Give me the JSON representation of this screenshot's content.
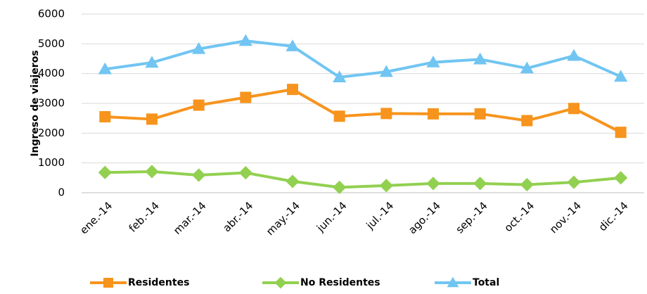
{
  "chart_data": {
    "type": "line",
    "y_label": "Ingreso de viajeros",
    "categories": [
      "ene.-14",
      "feb.-14",
      "mar.-14",
      "abr.-14",
      "may.-14",
      "jun.-14",
      "jul.-14",
      "ago.-14",
      "sep.-14",
      "oct.-14",
      "nov.-14",
      "dic.-14"
    ],
    "series": [
      {
        "name": "Residentes",
        "color": "#f7941d",
        "marker": "square",
        "values": [
          2550,
          2470,
          2940,
          3200,
          3470,
          2570,
          2660,
          2650,
          2650,
          2420,
          2830,
          2030
        ]
      },
      {
        "name": "No Residentes",
        "color": "#92d050",
        "marker": "diamond",
        "values": [
          680,
          710,
          590,
          670,
          380,
          180,
          240,
          310,
          310,
          270,
          350,
          500
        ]
      },
      {
        "name": "Total",
        "color": "#71c5f2",
        "marker": "triangle",
        "values": [
          4150,
          4370,
          4830,
          5100,
          4920,
          3880,
          4060,
          4380,
          4480,
          4180,
          4600,
          3900
        ]
      }
    ],
    "ylim": [
      0,
      6000
    ],
    "yticks": [
      0,
      1000,
      2000,
      3000,
      4000,
      5000,
      6000
    ],
    "grid": true,
    "legend": "bottom"
  }
}
